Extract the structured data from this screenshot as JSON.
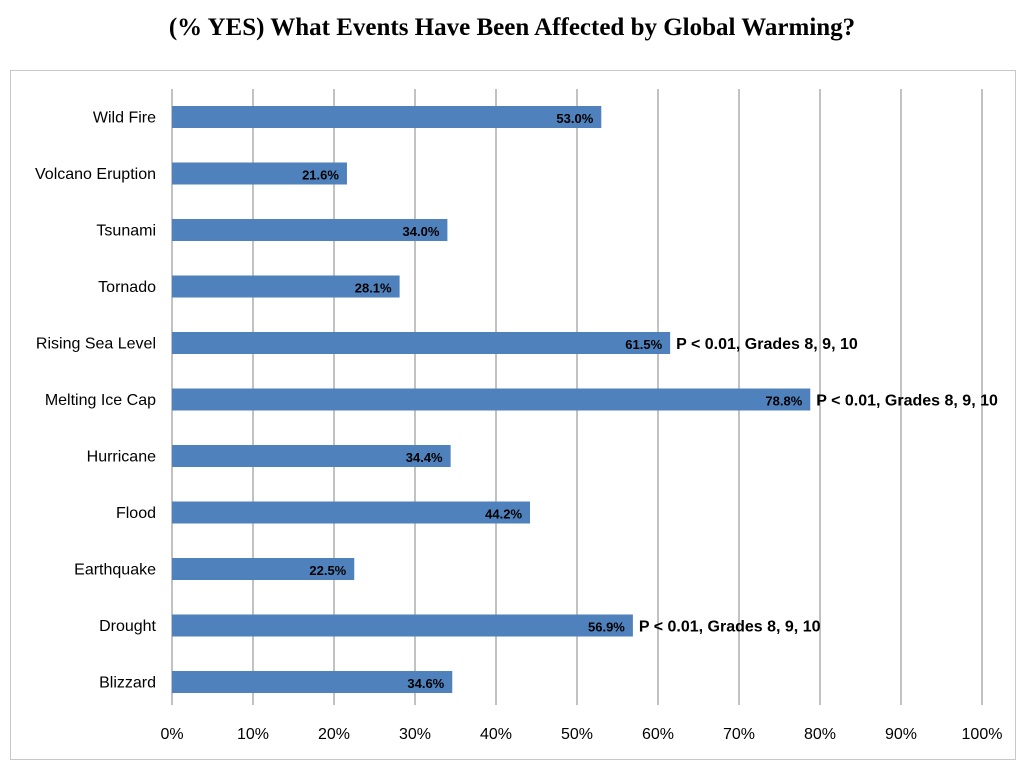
{
  "page": {
    "title": "(% YES) What Events Have Been Affected by Global Warming?"
  },
  "chart_data": {
    "type": "bar",
    "orientation": "horizontal",
    "title": "(% YES) What Events Have Been Affected by Global Warming?",
    "categories": [
      "Wild Fire",
      "Volcano Eruption",
      "Tsunami",
      "Tornado",
      "Rising Sea Level",
      "Melting Ice Cap",
      "Hurricane",
      "Flood",
      "Earthquake",
      "Drought",
      "Blizzard"
    ],
    "values": [
      53.0,
      21.6,
      34.0,
      28.1,
      61.5,
      78.8,
      34.4,
      44.2,
      22.5,
      56.9,
      34.6
    ],
    "value_labels": [
      "53.0%",
      "21.6%",
      "34.0%",
      "28.1%",
      "61.5%",
      "78.8%",
      "34.4%",
      "44.2%",
      "22.5%",
      "56.9%",
      "34.6%"
    ],
    "annotations": [
      "",
      "",
      "",
      "",
      "P < 0.01, Grades 8, 9, 10",
      "P < 0.01, Grades 8, 9, 10",
      "",
      "",
      "",
      "P < 0.01, Grades 8, 9, 10",
      ""
    ],
    "xlim": [
      0,
      100
    ],
    "x_ticks": [
      "0%",
      "10%",
      "20%",
      "30%",
      "40%",
      "50%",
      "60%",
      "70%",
      "80%",
      "90%",
      "100%"
    ],
    "grid": "vertical",
    "legend": "none",
    "bar_color": "#4f81bd",
    "gridline_color": "#868686"
  }
}
